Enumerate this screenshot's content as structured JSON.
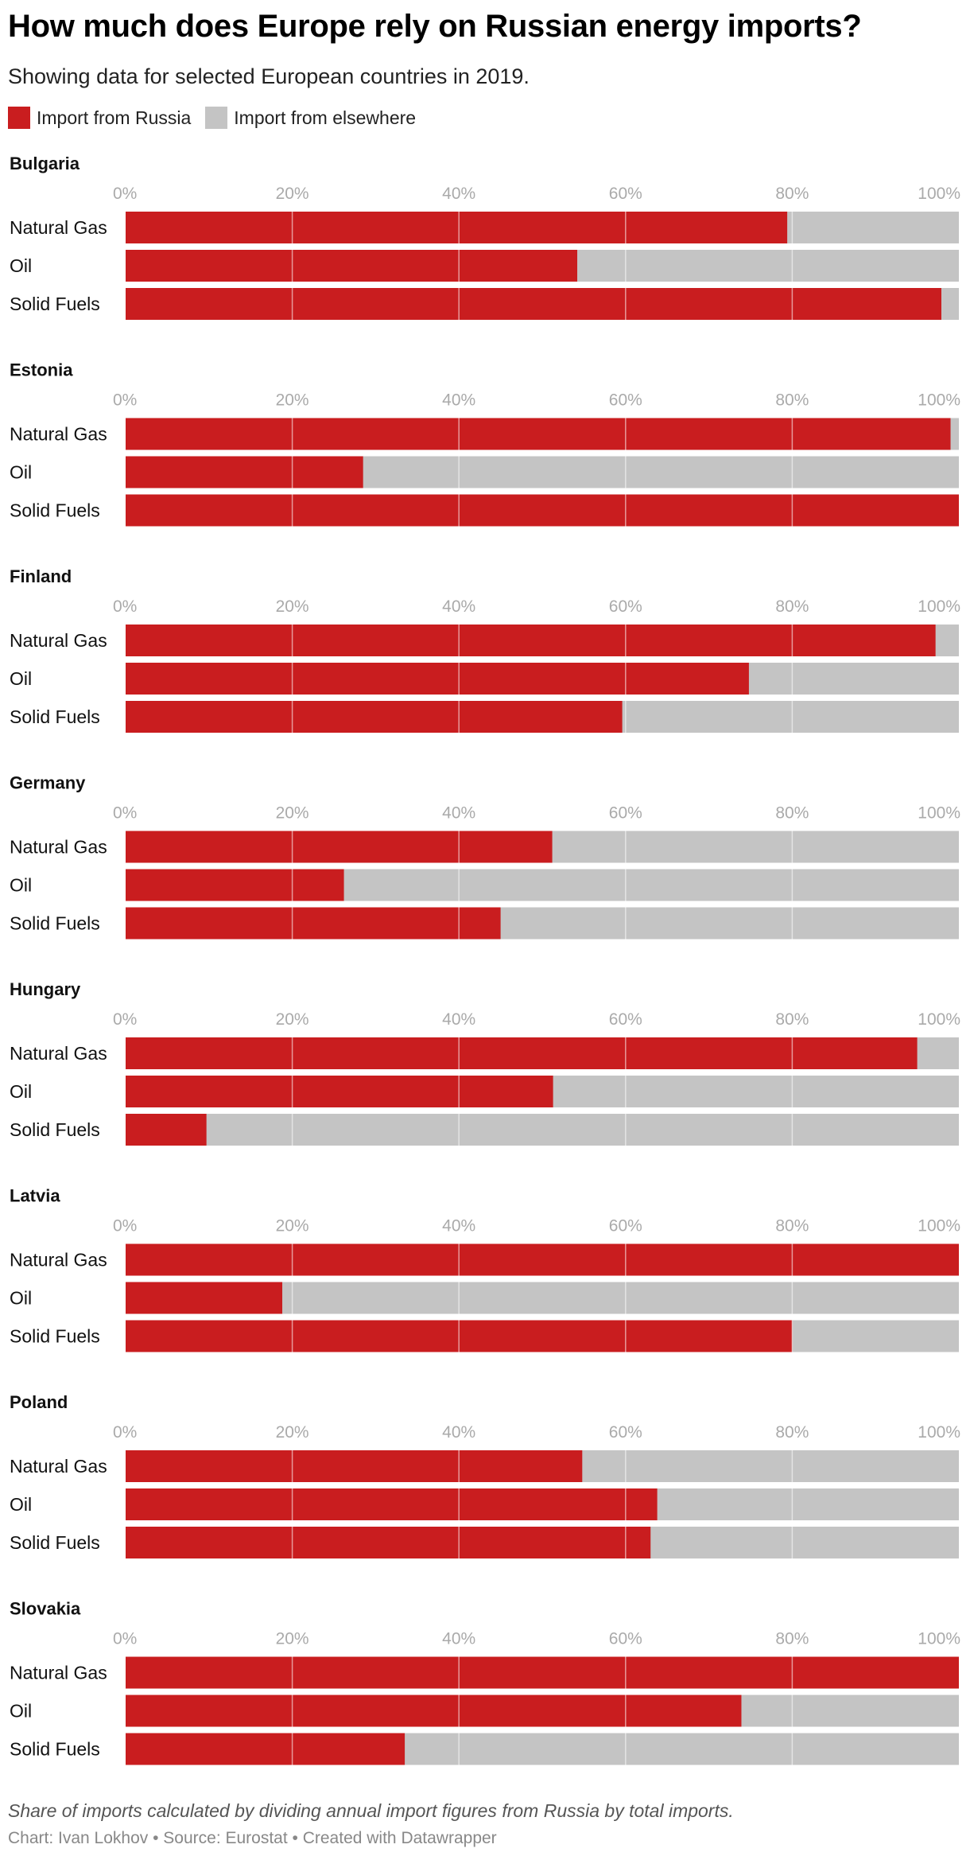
{
  "title": "How much does Europe rely on Russian energy imports?",
  "subtitle": "Showing data for selected European countries in 2019.",
  "legend": {
    "russia": "Import from Russia",
    "elsewhere": "Import from elsewhere"
  },
  "colors": {
    "russia": "#c91d1f",
    "elsewhere": "#c4c4c4",
    "gridline": "#ffffff",
    "tick_text": "#aaaaaa"
  },
  "chart_data": {
    "type": "bar",
    "stacked": true,
    "orientation": "horizontal",
    "xlim": [
      0,
      100
    ],
    "ticks": [
      "0%",
      "20%",
      "40%",
      "60%",
      "80%",
      "100%"
    ],
    "categories": [
      "Natural Gas",
      "Oil",
      "Solid Fuels"
    ],
    "series_names": [
      "Import from Russia",
      "Import from elsewhere"
    ],
    "panels": [
      {
        "country": "Bulgaria",
        "russia": [
          79.4,
          54.2,
          97.9
        ]
      },
      {
        "country": "Estonia",
        "russia": [
          99.0,
          28.5,
          100.0
        ]
      },
      {
        "country": "Finland",
        "russia": [
          97.2,
          74.8,
          59.6
        ]
      },
      {
        "country": "Germany",
        "russia": [
          51.2,
          26.2,
          45.0
        ]
      },
      {
        "country": "Hungary",
        "russia": [
          95.0,
          51.3,
          9.7
        ]
      },
      {
        "country": "Latvia",
        "russia": [
          100.0,
          18.8,
          80.0
        ]
      },
      {
        "country": "Poland",
        "russia": [
          54.8,
          63.8,
          63.0
        ]
      },
      {
        "country": "Slovakia",
        "russia": [
          100.0,
          73.9,
          33.5
        ]
      }
    ]
  },
  "footnote": "Share of imports calculated by dividing annual import figures from Russia by total imports.",
  "credits": "Chart: Ivan Lokhov • Source: Eurostat • Created with Datawrapper"
}
